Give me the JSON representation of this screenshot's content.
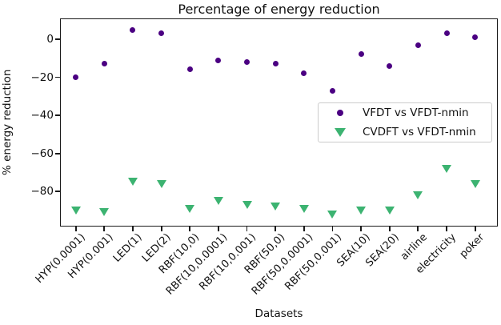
{
  "chart_data": {
    "type": "scatter",
    "title": "Percentage of energy reduction",
    "xlabel": "Datasets",
    "ylabel": "% energy reduction",
    "categories": [
      "HYP(0.0001)",
      "HYP(0.001)",
      "LED(1)",
      "LED(2)",
      "RBF(10,0)",
      "RBF(10,0.0001)",
      "RBF(10,0.001)",
      "RBF(50,0)",
      "RBF(50,0.0001)",
      "RBF(50,0.001)",
      "SEA(10)",
      "SEA(20)",
      "airline",
      "electricity",
      "poker"
    ],
    "series": [
      {
        "name": "VFDT vs VFDT-nmin",
        "marker": "circle",
        "color": "#4B0082",
        "values": [
          -20,
          -13,
          5,
          3,
          -16,
          -11,
          -12,
          -13,
          -18,
          -27,
          -8,
          -14,
          -3,
          3,
          1
        ]
      },
      {
        "name": "CVDFT vs VFDT-nmin",
        "marker": "triangle-down",
        "color": "#3CB371",
        "values": [
          -90,
          -91,
          -75,
          -76,
          -89,
          -85,
          -87,
          -88,
          -89,
          -92,
          -90,
          -90,
          -82,
          -68,
          -76
        ]
      }
    ],
    "yticks": [
      0,
      -20,
      -40,
      -60,
      -80
    ],
    "ylim": [
      -98.4,
      10.9
    ],
    "grid": false,
    "legend_position": "center right"
  }
}
